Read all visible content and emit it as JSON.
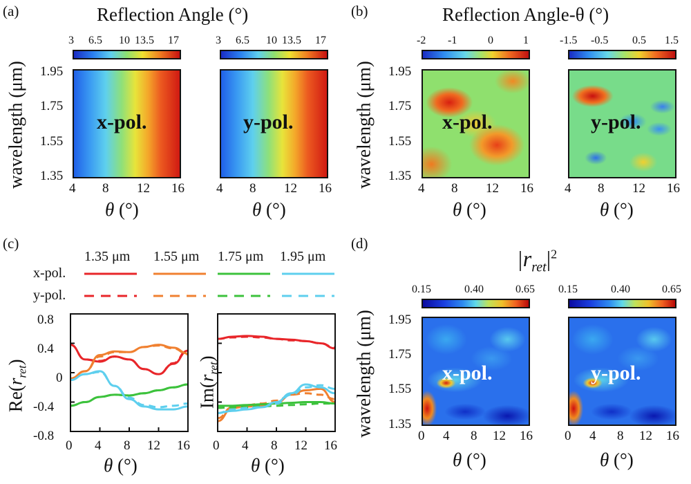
{
  "panels": {
    "a": {
      "label": "(a)",
      "title": "Reflection Angle (°)",
      "cbar_ticks": [
        "3",
        "6.5",
        "10",
        "13.5",
        "17"
      ],
      "annotations": [
        "x-pol.",
        "y-pol."
      ]
    },
    "b": {
      "label": "(b)",
      "title": "Reflection Angle-θ (°)",
      "cbar1_ticks": [
        "-2",
        "-1",
        "0",
        "1"
      ],
      "cbar2_ticks": [
        "-1.5",
        "-0.5",
        "0.5",
        "1.5"
      ],
      "annotations": [
        "x-pol.",
        "y-pol."
      ]
    },
    "c": {
      "label": "(c)",
      "legend_row_labels": [
        "x-pol.",
        "y-pol."
      ],
      "legend_wavelengths": [
        "1.35 μm",
        "1.55 μm",
        "1.75 μm",
        "1.95 μm"
      ]
    },
    "d": {
      "label": "(d)",
      "title_main": "|r",
      "title_sub": "ret",
      "title_sup": "2",
      "cbar_ticks": [
        "0.15",
        "0.40",
        "0.65"
      ],
      "annotations": [
        "x-pol.",
        "y-pol."
      ]
    }
  },
  "axes": {
    "wavelength_label": "wavelength (μm)",
    "theta_label_var": "θ",
    "theta_label_unit": " (°)",
    "wl_ticks": [
      "1.95",
      "1.75",
      "1.55",
      "1.35"
    ],
    "theta_ticks_4_16": [
      "4",
      "8",
      "12",
      "16"
    ],
    "theta_ticks_0_16": [
      "0",
      "4",
      "8",
      "12",
      "16"
    ],
    "re_ticks": [
      "0.8",
      "0.4",
      "0",
      "-0.4",
      "-0.8"
    ],
    "re_label": "Re(",
    "im_label": "Im(",
    "r_sym": "r",
    "ret_sub": "ret",
    "close_paren": ")"
  },
  "colors": {
    "wl_1_35": "#e8262a",
    "wl_1_55": "#f08030",
    "wl_1_75": "#3cc23c",
    "wl_1_95": "#5ecfee"
  },
  "chart_data": [
    {
      "type": "line",
      "title": "Re(r_ret)",
      "xlabel": "θ (°)",
      "ylabel": "Re(r_ret)",
      "xlim": [
        0,
        16
      ],
      "ylim": [
        -0.8,
        0.8
      ],
      "x": [
        0,
        2,
        4,
        6,
        8,
        10,
        12,
        14,
        16
      ],
      "series": [
        {
          "name": "1.35 μm x-pol.",
          "color": "#e8262a",
          "dash": false,
          "values": [
            0.38,
            0.18,
            0.15,
            0.22,
            0.18,
            0.05,
            -0.02,
            0.12,
            0.3
          ]
        },
        {
          "name": "1.35 μm y-pol.",
          "color": "#e8262a",
          "dash": true,
          "values": [
            0.38,
            0.18,
            0.16,
            0.22,
            0.18,
            0.05,
            -0.02,
            0.13,
            0.31
          ]
        },
        {
          "name": "1.55 μm x-pol.",
          "color": "#f08030",
          "dash": false,
          "values": [
            -0.08,
            0.02,
            0.24,
            0.29,
            0.28,
            0.35,
            0.38,
            0.34,
            0.26
          ]
        },
        {
          "name": "1.55 μm y-pol.",
          "color": "#f08030",
          "dash": true,
          "values": [
            -0.08,
            0.02,
            0.22,
            0.28,
            0.28,
            0.35,
            0.37,
            0.33,
            0.25
          ]
        },
        {
          "name": "1.75 μm x-pol.",
          "color": "#3cc23c",
          "dash": false,
          "values": [
            -0.45,
            -0.4,
            -0.33,
            -0.3,
            -0.31,
            -0.28,
            -0.24,
            -0.2,
            -0.16
          ]
        },
        {
          "name": "1.75 μm y-pol.",
          "color": "#3cc23c",
          "dash": true,
          "values": [
            -0.45,
            -0.4,
            -0.33,
            -0.3,
            -0.31,
            -0.28,
            -0.24,
            -0.2,
            -0.16
          ]
        },
        {
          "name": "1.95 μm x-pol.",
          "color": "#5ecfee",
          "dash": false,
          "values": [
            -0.1,
            -0.02,
            0.02,
            -0.18,
            -0.36,
            -0.46,
            -0.5,
            -0.5,
            -0.46
          ]
        },
        {
          "name": "1.95 μm y-pol.",
          "color": "#5ecfee",
          "dash": true,
          "values": [
            -0.1,
            -0.02,
            0.01,
            -0.18,
            -0.34,
            -0.44,
            -0.47,
            -0.45,
            -0.42
          ]
        }
      ]
    },
    {
      "type": "line",
      "title": "Im(r_ret)",
      "xlabel": "θ (°)",
      "ylabel": "Im(r_ret)",
      "xlim": [
        0,
        16
      ],
      "ylim": [
        -0.8,
        0.8
      ],
      "x": [
        0,
        2,
        4,
        6,
        8,
        10,
        12,
        14,
        16
      ],
      "series": [
        {
          "name": "1.35 μm x-pol.",
          "color": "#e8262a",
          "dash": false,
          "values": [
            0.46,
            0.49,
            0.5,
            0.49,
            0.46,
            0.45,
            0.43,
            0.4,
            0.33
          ]
        },
        {
          "name": "1.35 μm y-pol.",
          "color": "#e8262a",
          "dash": true,
          "values": [
            0.46,
            0.48,
            0.49,
            0.48,
            0.46,
            0.44,
            0.43,
            0.4,
            0.34
          ]
        },
        {
          "name": "1.55 μm x-pol.",
          "color": "#f08030",
          "dash": false,
          "values": [
            -0.66,
            -0.48,
            -0.46,
            -0.45,
            -0.41,
            -0.3,
            -0.24,
            -0.22,
            -0.4
          ]
        },
        {
          "name": "1.55 μm y-pol.",
          "color": "#f08030",
          "dash": true,
          "values": [
            -0.62,
            -0.47,
            -0.44,
            -0.42,
            -0.38,
            -0.3,
            -0.28,
            -0.3,
            -0.36
          ]
        },
        {
          "name": "1.75 μm x-pol.",
          "color": "#3cc23c",
          "dash": false,
          "values": [
            -0.45,
            -0.45,
            -0.44,
            -0.43,
            -0.42,
            -0.41,
            -0.4,
            -0.4,
            -0.42
          ]
        },
        {
          "name": "1.75 μm y-pol.",
          "color": "#3cc23c",
          "dash": true,
          "values": [
            -0.48,
            -0.47,
            -0.47,
            -0.46,
            -0.45,
            -0.44,
            -0.43,
            -0.42,
            -0.42
          ]
        },
        {
          "name": "1.95 μm x-pol.",
          "color": "#5ecfee",
          "dash": false,
          "values": [
            -0.55,
            -0.52,
            -0.5,
            -0.47,
            -0.4,
            -0.28,
            -0.16,
            -0.2,
            -0.28
          ]
        },
        {
          "name": "1.95 μm y-pol.",
          "color": "#5ecfee",
          "dash": true,
          "values": [
            -0.55,
            -0.5,
            -0.48,
            -0.47,
            -0.42,
            -0.3,
            -0.2,
            -0.17,
            -0.22
          ]
        }
      ]
    },
    {
      "type": "heatmap",
      "title": "Reflection Angle (°)",
      "xlabel": "θ (°)",
      "ylabel": "wavelength (μm)",
      "xlim": [
        4,
        16
      ],
      "ylim": [
        1.35,
        1.95
      ],
      "color_range": [
        3,
        17
      ],
      "maps": [
        "x-pol.",
        "y-pol."
      ],
      "row_profile_theta": [
        4,
        6,
        8,
        10,
        12,
        14,
        16
      ],
      "row_profile_values": [
        3,
        6.5,
        9,
        11,
        13,
        15,
        17
      ]
    },
    {
      "type": "heatmap",
      "title": "Reflection Angle-θ (°)",
      "xlabel": "θ (°)",
      "ylabel": "wavelength (μm)",
      "xlim": [
        4,
        16
      ],
      "ylim": [
        1.35,
        1.95
      ],
      "color_range_x": [
        -2,
        1
      ],
      "color_range_y": [
        -1.5,
        1.5
      ],
      "maps": [
        "x-pol.",
        "y-pol."
      ]
    },
    {
      "type": "heatmap",
      "title": "|r_ret|^2",
      "xlabel": "θ (°)",
      "ylabel": "wavelength (μm)",
      "xlim": [
        0,
        16
      ],
      "ylim": [
        1.35,
        1.95
      ],
      "color_range": [
        0.15,
        0.65
      ],
      "maps": [
        "x-pol.",
        "y-pol."
      ]
    }
  ]
}
